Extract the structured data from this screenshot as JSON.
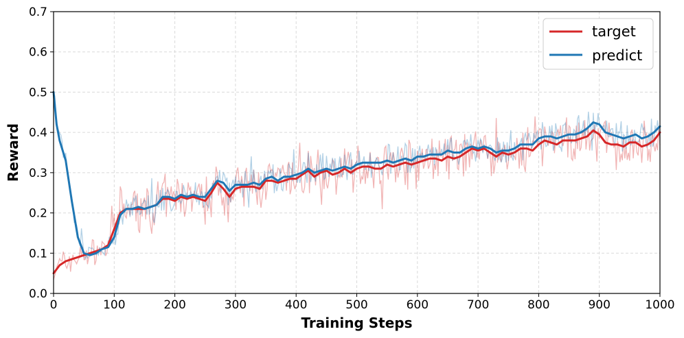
{
  "chart_data": {
    "type": "line",
    "title": "",
    "xlabel": "Training Steps",
    "ylabel": "Reward",
    "xlim": [
      0,
      1000
    ],
    "ylim": [
      0,
      0.7
    ],
    "xticks": [
      0,
      100,
      200,
      300,
      400,
      500,
      600,
      700,
      800,
      900,
      1000
    ],
    "yticks": [
      0.0,
      0.1,
      0.2,
      0.3,
      0.4,
      0.5,
      0.6,
      0.7
    ],
    "xtick_labels": [
      "0",
      "100",
      "200",
      "300",
      "400",
      "500",
      "600",
      "700",
      "800",
      "900",
      "1000"
    ],
    "ytick_labels": [
      "0.0",
      "0.1",
      "0.2",
      "0.3",
      "0.4",
      "0.5",
      "0.6",
      "0.7"
    ],
    "grid": true,
    "legend_position": "top-right",
    "series": [
      {
        "name": "target",
        "color": "#d62728",
        "raw_noise_amplitude": 0.045,
        "smoothed": [
          [
            0,
            0.05
          ],
          [
            10,
            0.07
          ],
          [
            20,
            0.08
          ],
          [
            30,
            0.085
          ],
          [
            40,
            0.09
          ],
          [
            50,
            0.095
          ],
          [
            60,
            0.1
          ],
          [
            70,
            0.105
          ],
          [
            80,
            0.11
          ],
          [
            90,
            0.12
          ],
          [
            100,
            0.16
          ],
          [
            110,
            0.2
          ],
          [
            120,
            0.21
          ],
          [
            130,
            0.21
          ],
          [
            140,
            0.21
          ],
          [
            150,
            0.21
          ],
          [
            160,
            0.215
          ],
          [
            170,
            0.22
          ],
          [
            180,
            0.235
          ],
          [
            190,
            0.235
          ],
          [
            200,
            0.23
          ],
          [
            210,
            0.24
          ],
          [
            220,
            0.235
          ],
          [
            230,
            0.24
          ],
          [
            240,
            0.235
          ],
          [
            250,
            0.23
          ],
          [
            260,
            0.25
          ],
          [
            270,
            0.275
          ],
          [
            280,
            0.26
          ],
          [
            290,
            0.24
          ],
          [
            300,
            0.26
          ],
          [
            310,
            0.265
          ],
          [
            320,
            0.265
          ],
          [
            330,
            0.265
          ],
          [
            340,
            0.26
          ],
          [
            350,
            0.28
          ],
          [
            360,
            0.28
          ],
          [
            370,
            0.275
          ],
          [
            380,
            0.28
          ],
          [
            390,
            0.285
          ],
          [
            400,
            0.285
          ],
          [
            410,
            0.295
          ],
          [
            420,
            0.305
          ],
          [
            430,
            0.29
          ],
          [
            440,
            0.3
          ],
          [
            450,
            0.305
          ],
          [
            460,
            0.295
          ],
          [
            470,
            0.3
          ],
          [
            480,
            0.31
          ],
          [
            490,
            0.3
          ],
          [
            500,
            0.31
          ],
          [
            510,
            0.315
          ],
          [
            520,
            0.315
          ],
          [
            530,
            0.31
          ],
          [
            540,
            0.31
          ],
          [
            550,
            0.32
          ],
          [
            560,
            0.315
          ],
          [
            570,
            0.32
          ],
          [
            580,
            0.325
          ],
          [
            590,
            0.32
          ],
          [
            600,
            0.325
          ],
          [
            610,
            0.33
          ],
          [
            620,
            0.335
          ],
          [
            630,
            0.335
          ],
          [
            640,
            0.33
          ],
          [
            650,
            0.34
          ],
          [
            660,
            0.335
          ],
          [
            670,
            0.34
          ],
          [
            680,
            0.35
          ],
          [
            690,
            0.36
          ],
          [
            700,
            0.355
          ],
          [
            710,
            0.36
          ],
          [
            720,
            0.35
          ],
          [
            730,
            0.34
          ],
          [
            740,
            0.35
          ],
          [
            750,
            0.345
          ],
          [
            760,
            0.35
          ],
          [
            770,
            0.36
          ],
          [
            780,
            0.36
          ],
          [
            790,
            0.355
          ],
          [
            800,
            0.37
          ],
          [
            810,
            0.38
          ],
          [
            820,
            0.375
          ],
          [
            830,
            0.37
          ],
          [
            840,
            0.38
          ],
          [
            850,
            0.38
          ],
          [
            860,
            0.38
          ],
          [
            870,
            0.385
          ],
          [
            880,
            0.39
          ],
          [
            890,
            0.405
          ],
          [
            900,
            0.395
          ],
          [
            910,
            0.375
          ],
          [
            920,
            0.37
          ],
          [
            930,
            0.37
          ],
          [
            940,
            0.365
          ],
          [
            950,
            0.375
          ],
          [
            960,
            0.375
          ],
          [
            970,
            0.365
          ],
          [
            980,
            0.37
          ],
          [
            990,
            0.38
          ],
          [
            1000,
            0.4
          ]
        ]
      },
      {
        "name": "predict",
        "color": "#1f77b4",
        "raw_noise_amplitude": 0.03,
        "smoothed": [
          [
            0,
            0.5
          ],
          [
            5,
            0.42
          ],
          [
            10,
            0.38
          ],
          [
            20,
            0.33
          ],
          [
            30,
            0.23
          ],
          [
            40,
            0.14
          ],
          [
            50,
            0.1
          ],
          [
            60,
            0.095
          ],
          [
            70,
            0.1
          ],
          [
            80,
            0.11
          ],
          [
            90,
            0.115
          ],
          [
            100,
            0.14
          ],
          [
            110,
            0.195
          ],
          [
            120,
            0.21
          ],
          [
            130,
            0.21
          ],
          [
            140,
            0.215
          ],
          [
            150,
            0.21
          ],
          [
            160,
            0.215
          ],
          [
            170,
            0.22
          ],
          [
            180,
            0.24
          ],
          [
            190,
            0.24
          ],
          [
            200,
            0.235
          ],
          [
            210,
            0.245
          ],
          [
            220,
            0.24
          ],
          [
            230,
            0.245
          ],
          [
            240,
            0.24
          ],
          [
            250,
            0.24
          ],
          [
            260,
            0.26
          ],
          [
            270,
            0.28
          ],
          [
            280,
            0.275
          ],
          [
            290,
            0.255
          ],
          [
            300,
            0.27
          ],
          [
            310,
            0.27
          ],
          [
            320,
            0.27
          ],
          [
            330,
            0.275
          ],
          [
            340,
            0.27
          ],
          [
            350,
            0.285
          ],
          [
            360,
            0.29
          ],
          [
            370,
            0.28
          ],
          [
            380,
            0.29
          ],
          [
            390,
            0.29
          ],
          [
            400,
            0.295
          ],
          [
            410,
            0.3
          ],
          [
            420,
            0.31
          ],
          [
            430,
            0.3
          ],
          [
            440,
            0.305
          ],
          [
            450,
            0.31
          ],
          [
            460,
            0.305
          ],
          [
            470,
            0.31
          ],
          [
            480,
            0.315
          ],
          [
            490,
            0.31
          ],
          [
            500,
            0.32
          ],
          [
            510,
            0.325
          ],
          [
            520,
            0.325
          ],
          [
            530,
            0.325
          ],
          [
            540,
            0.325
          ],
          [
            550,
            0.33
          ],
          [
            560,
            0.325
          ],
          [
            570,
            0.33
          ],
          [
            580,
            0.335
          ],
          [
            590,
            0.33
          ],
          [
            600,
            0.34
          ],
          [
            610,
            0.34
          ],
          [
            620,
            0.345
          ],
          [
            630,
            0.345
          ],
          [
            640,
            0.345
          ],
          [
            650,
            0.355
          ],
          [
            660,
            0.35
          ],
          [
            670,
            0.35
          ],
          [
            680,
            0.36
          ],
          [
            690,
            0.365
          ],
          [
            700,
            0.36
          ],
          [
            710,
            0.365
          ],
          [
            720,
            0.36
          ],
          [
            730,
            0.35
          ],
          [
            740,
            0.355
          ],
          [
            750,
            0.355
          ],
          [
            760,
            0.36
          ],
          [
            770,
            0.37
          ],
          [
            780,
            0.37
          ],
          [
            790,
            0.37
          ],
          [
            800,
            0.385
          ],
          [
            810,
            0.39
          ],
          [
            820,
            0.39
          ],
          [
            830,
            0.385
          ],
          [
            840,
            0.39
          ],
          [
            850,
            0.395
          ],
          [
            860,
            0.395
          ],
          [
            870,
            0.4
          ],
          [
            880,
            0.41
          ],
          [
            890,
            0.425
          ],
          [
            900,
            0.42
          ],
          [
            910,
            0.4
          ],
          [
            920,
            0.395
          ],
          [
            930,
            0.39
          ],
          [
            940,
            0.385
          ],
          [
            950,
            0.39
          ],
          [
            960,
            0.395
          ],
          [
            970,
            0.385
          ],
          [
            980,
            0.39
          ],
          [
            990,
            0.4
          ],
          [
            1000,
            0.415
          ]
        ]
      }
    ]
  }
}
